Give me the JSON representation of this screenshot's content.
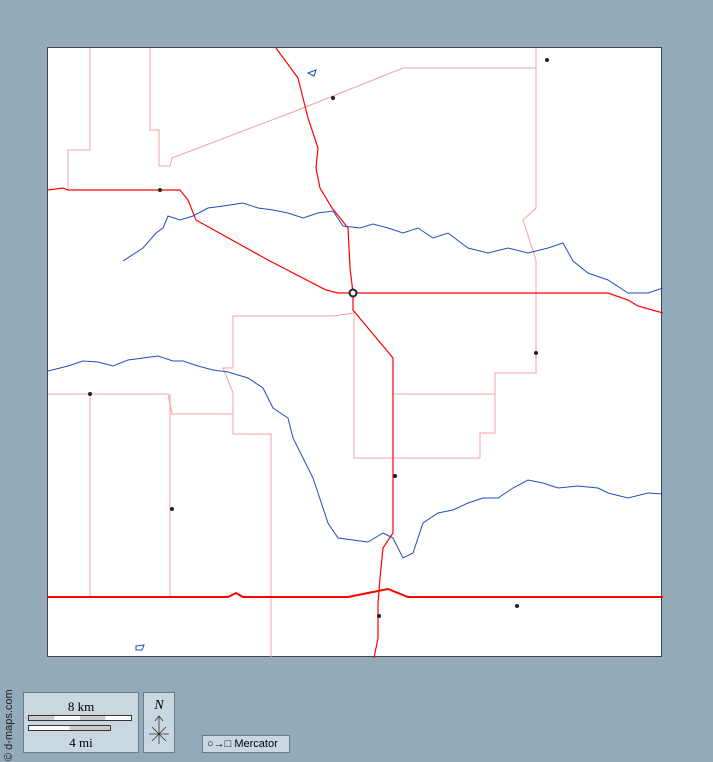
{
  "credit": "© d-maps.com",
  "scale": {
    "km_label": "8 km",
    "mi_label": "4 mi"
  },
  "north": {
    "label": "N",
    "icon": "compass-arrow-icon"
  },
  "projection": {
    "icon": "circle-to-square-icon",
    "symbol": "○→□",
    "label": "Mercator"
  },
  "colors": {
    "background": "#93aabb",
    "roads_major": "#ff0000",
    "roads_minor": "#f4a0a0",
    "rivers": "#1f4fbf",
    "towns": "#222222"
  }
}
